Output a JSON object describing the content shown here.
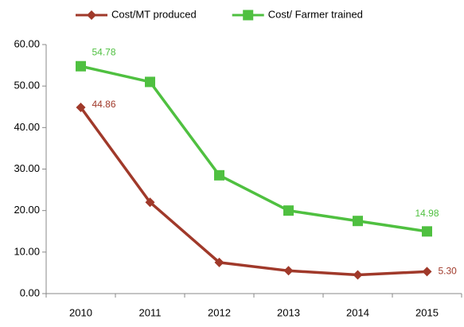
{
  "chart_data": {
    "type": "line",
    "categories": [
      "2010",
      "2011",
      "2012",
      "2013",
      "2014",
      "2015"
    ],
    "series": [
      {
        "name": "Cost/MT produced",
        "color": "#a0392a",
        "marker": "diamond",
        "values": [
          44.86,
          22.0,
          7.5,
          5.5,
          4.5,
          5.3
        ],
        "value_labels": [
          "44.86",
          null,
          null,
          null,
          null,
          "5.30"
        ]
      },
      {
        "name": "Cost/ Farmer trained",
        "color": "#4fc040",
        "marker": "square",
        "values": [
          54.78,
          51.0,
          28.5,
          20.0,
          17.5,
          14.98
        ],
        "value_labels": [
          "54.78",
          null,
          null,
          null,
          null,
          "14.98"
        ]
      }
    ],
    "ylim": [
      0,
      60
    ],
    "yticks": [
      {
        "value": 0,
        "label": "0.00"
      },
      {
        "value": 10,
        "label": "10.00"
      },
      {
        "value": 20,
        "label": "20.00"
      },
      {
        "value": 30,
        "label": "30.00"
      },
      {
        "value": 40,
        "label": "40.00"
      },
      {
        "value": 50,
        "label": "50.00"
      },
      {
        "value": 60,
        "label": "60.00"
      }
    ],
    "grid": false,
    "legend": "top"
  }
}
